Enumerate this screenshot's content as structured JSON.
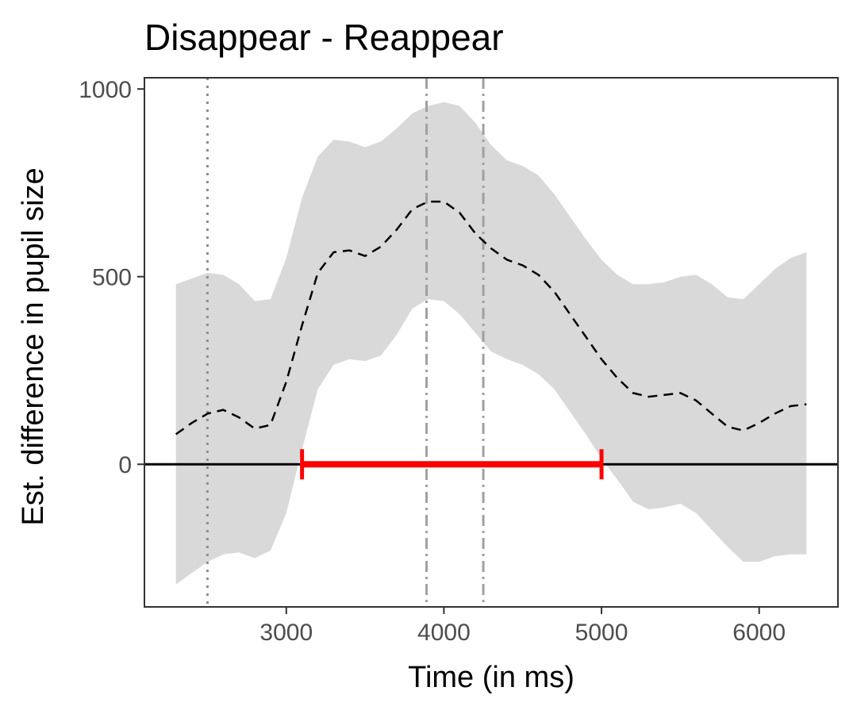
{
  "chart_data": {
    "type": "line",
    "title": "Disappear - Reappear",
    "xlabel": "Time (in ms)",
    "ylabel": "Est. difference in pupil size",
    "xlim": [
      2100,
      6500
    ],
    "ylim": [
      -380,
      1030
    ],
    "x_ticks": [
      3000,
      4000,
      5000,
      6000
    ],
    "y_ticks": [
      0,
      500,
      1000
    ],
    "grid": false,
    "x": [
      2300,
      2400,
      2500,
      2600,
      2700,
      2800,
      2900,
      3000,
      3100,
      3200,
      3300,
      3400,
      3500,
      3600,
      3700,
      3800,
      3900,
      4000,
      4100,
      4200,
      4300,
      4400,
      4500,
      4600,
      4700,
      4800,
      4900,
      5000,
      5100,
      5200,
      5300,
      5400,
      5500,
      5600,
      5700,
      5800,
      5900,
      6000,
      6100,
      6200,
      6300
    ],
    "series": [
      {
        "estimate": [
          80,
          110,
          135,
          145,
          125,
          95,
          105,
          220,
          370,
          510,
          565,
          570,
          555,
          580,
          625,
          680,
          700,
          700,
          670,
          615,
          575,
          545,
          530,
          505,
          460,
          400,
          340,
          280,
          230,
          190,
          180,
          185,
          190,
          170,
          135,
          100,
          90,
          110,
          135,
          155,
          160
        ],
        "ci_upper": [
          480,
          495,
          510,
          505,
          480,
          435,
          440,
          550,
          710,
          820,
          865,
          860,
          845,
          860,
          895,
          935,
          955,
          965,
          955,
          910,
          850,
          810,
          795,
          770,
          720,
          660,
          600,
          545,
          505,
          480,
          480,
          485,
          500,
          505,
          480,
          445,
          440,
          480,
          520,
          550,
          565
        ],
        "ci_lower": [
          -320,
          -290,
          -260,
          -240,
          -235,
          -250,
          -230,
          -130,
          40,
          200,
          265,
          280,
          275,
          290,
          345,
          415,
          440,
          435,
          400,
          350,
          300,
          280,
          265,
          240,
          200,
          140,
          80,
          15,
          -40,
          -100,
          -120,
          -115,
          -105,
          -130,
          -175,
          -220,
          -260,
          -260,
          -245,
          -240,
          -240
        ]
      }
    ],
    "significant_interval": [
      3100,
      5000
    ],
    "significant_interval_color": "#ff0000",
    "reference_lines": [
      {
        "x": 2500,
        "style": "dotted"
      },
      {
        "x": 3890,
        "style": "dashed"
      },
      {
        "x": 4250,
        "style": "dashed"
      }
    ],
    "ribbon_color": "#d9d9d9",
    "line_color": "#000000"
  }
}
